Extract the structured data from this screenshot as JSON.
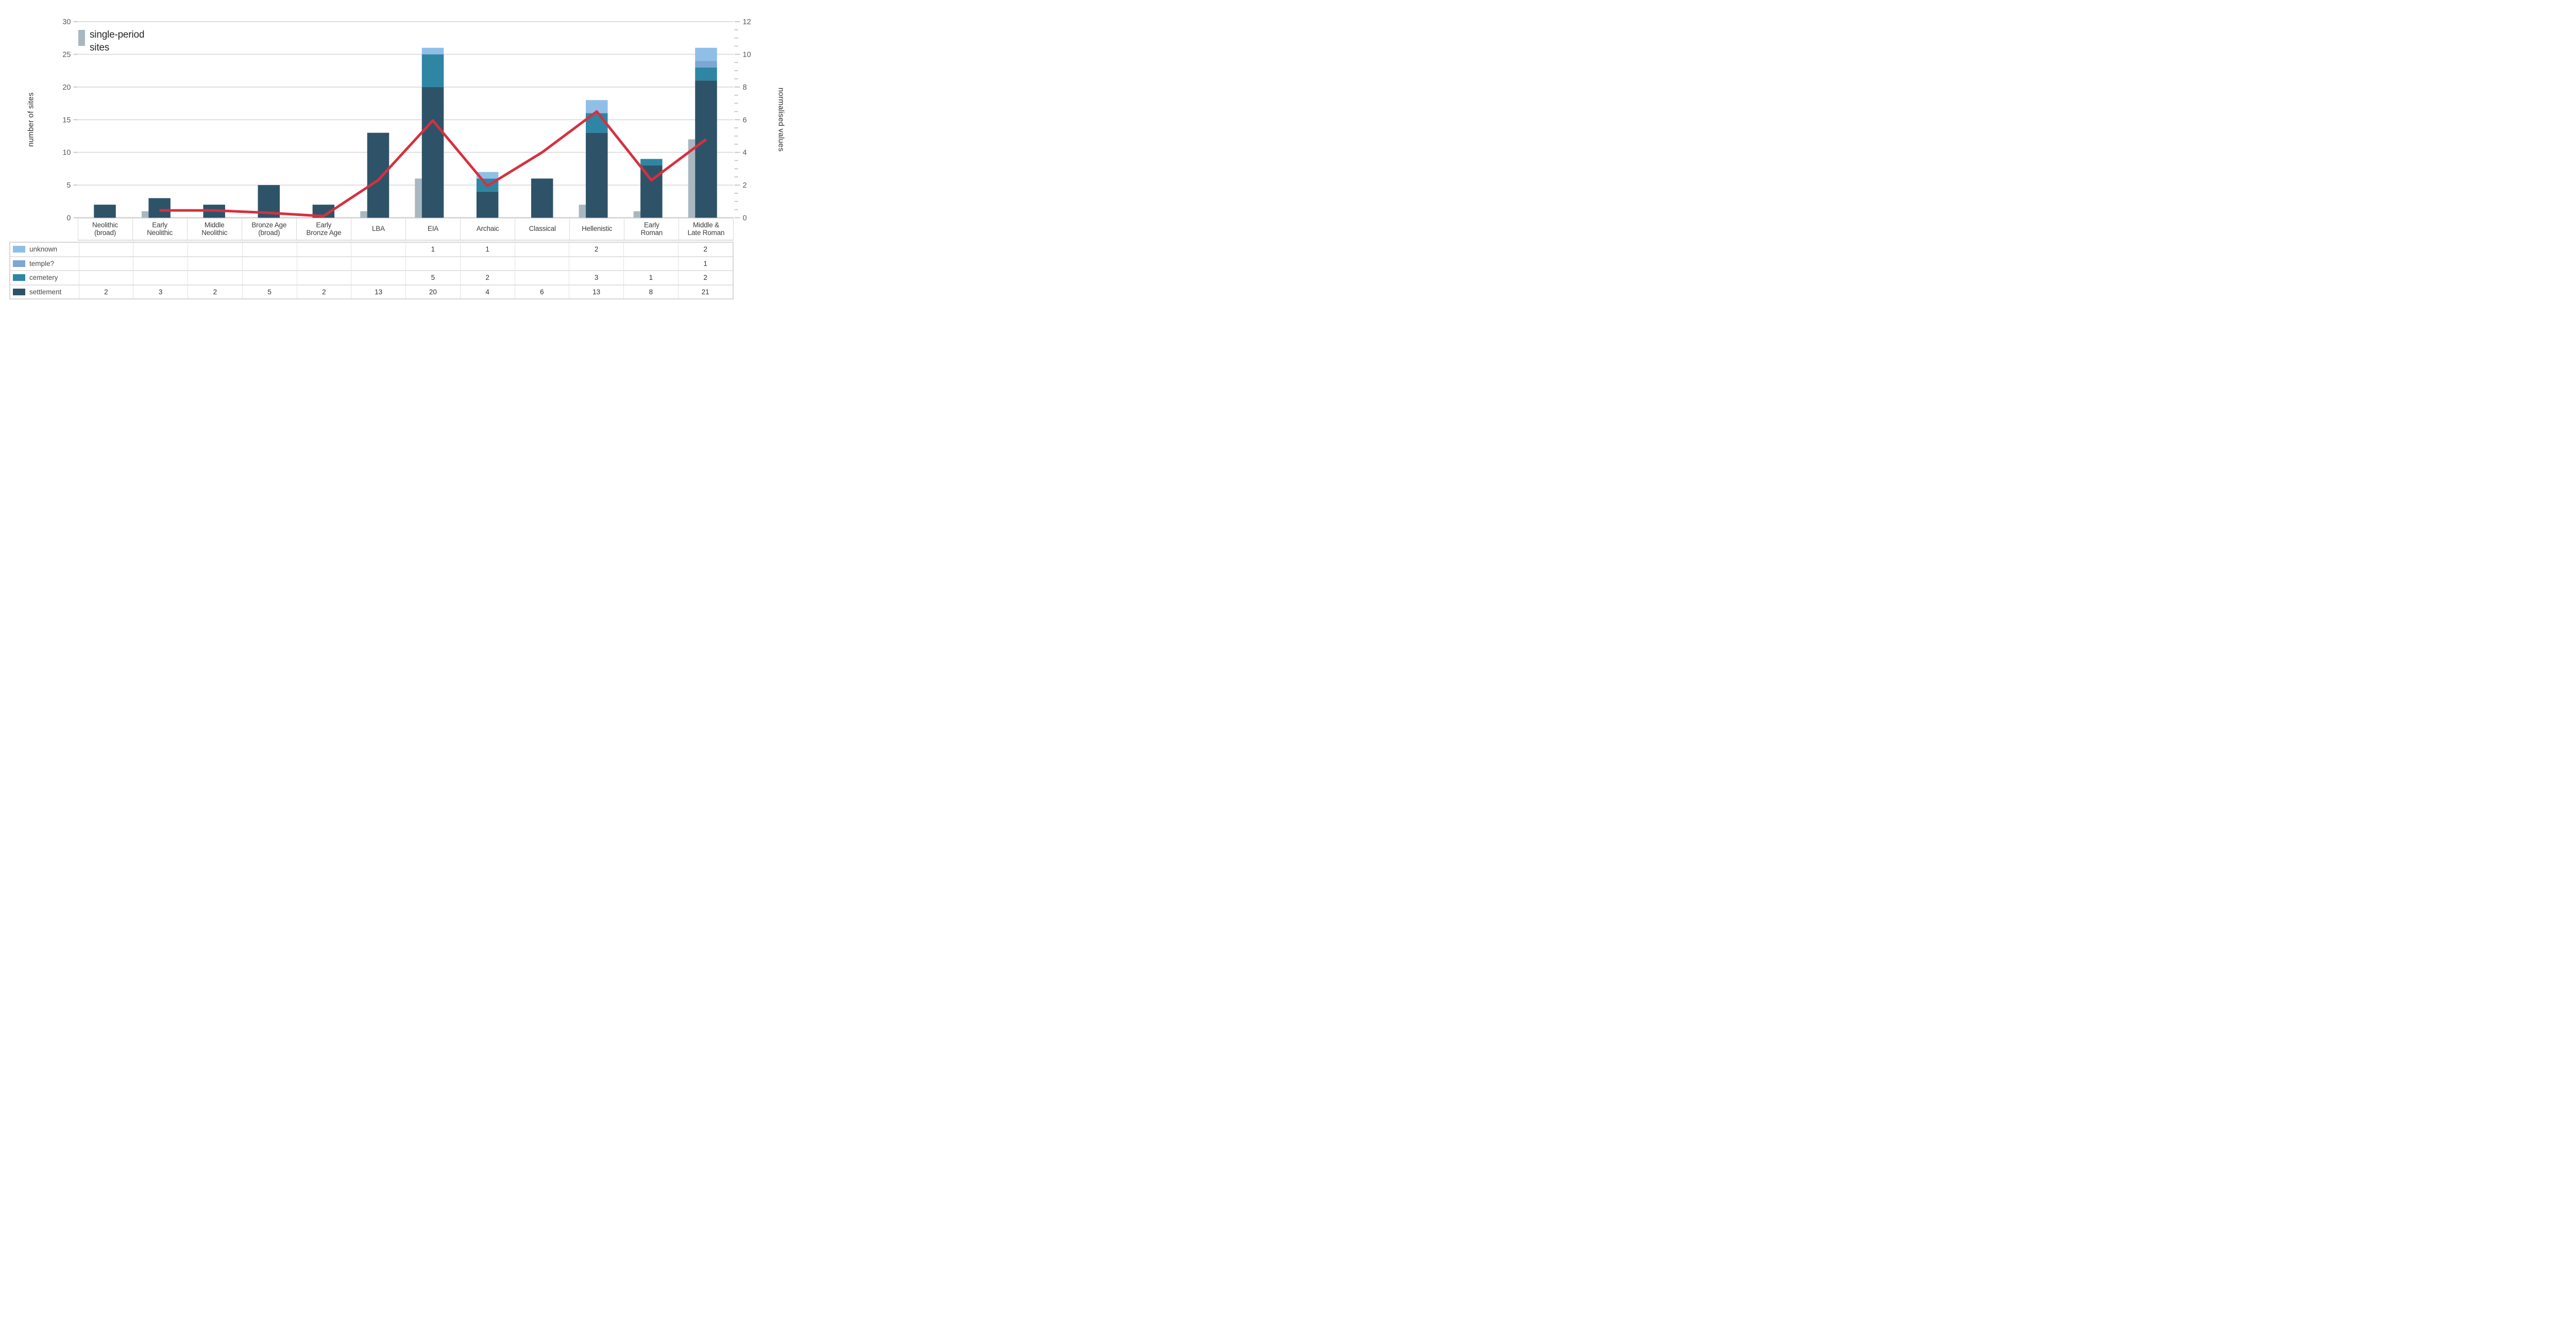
{
  "legend": {
    "label": "single-period sites"
  },
  "chart_data": {
    "type": "bar",
    "subtype": "stacked-bars-with-line-overlay",
    "categories": [
      "Neolithic\n(broad)",
      "Early\nNeolithic",
      "Middle\nNeolithic",
      "Bronze Age\n(broad)",
      "Early\nBronze Age",
      "LBA",
      "EIA",
      "Archaic",
      "Classical",
      "Hellenistic",
      "Early\nRoman",
      "Middle &\nLate Roman"
    ],
    "bar_series": [
      {
        "name": "settlement",
        "color": "#2E5369",
        "values": [
          2,
          3,
          2,
          5,
          2,
          13,
          20,
          4,
          6,
          13,
          8,
          21
        ]
      },
      {
        "name": "cemetery",
        "color": "#2E86A4",
        "values": [
          0,
          0,
          0,
          0,
          0,
          0,
          5,
          2,
          0,
          3,
          1,
          2
        ]
      },
      {
        "name": "temple?",
        "color": "#7CA6D3",
        "values": [
          0,
          0,
          0,
          0,
          0,
          0,
          0,
          0,
          0,
          0,
          0,
          1
        ]
      },
      {
        "name": "unknown",
        "color": "#8FBFE7",
        "values": [
          0,
          0,
          0,
          0,
          0,
          0,
          1,
          1,
          0,
          2,
          0,
          2
        ]
      }
    ],
    "single_period_series": {
      "name": "single-period sites",
      "color": "#A9B8C0",
      "values": [
        0,
        1,
        0,
        0,
        0,
        1,
        6,
        0,
        0,
        2,
        1,
        12
      ]
    },
    "line_series": {
      "name": "normalised values",
      "color": "#D6303F",
      "values": [
        null,
        0.45,
        0.45,
        0.3,
        0.1,
        2.3,
        5.95,
        1.95,
        4.0,
        6.5,
        2.3,
        4.8
      ]
    },
    "left_axis": {
      "title": "number of sites",
      "min": 0,
      "max": 30,
      "ticks": [
        0,
        5,
        10,
        15,
        20,
        25,
        30
      ]
    },
    "right_axis": {
      "title": "normalised values",
      "min": 0,
      "max": 12,
      "ticks": [
        0,
        2,
        4,
        6,
        8,
        10,
        12
      ],
      "minor_step": 0.5
    },
    "grid": true,
    "legend_position": "top-left"
  },
  "table": {
    "rows": [
      {
        "label": "unknown",
        "color": "#8FBFE7",
        "values": [
          "",
          "",
          "",
          "",
          "",
          "",
          "1",
          "1",
          "",
          "2",
          "",
          "2"
        ]
      },
      {
        "label": "temple?",
        "color": "#7CA6D3",
        "values": [
          "",
          "",
          "",
          "",
          "",
          "",
          "",
          "",
          "",
          "",
          "",
          "1"
        ]
      },
      {
        "label": "cemetery",
        "color": "#2E86A4",
        "values": [
          "",
          "",
          "",
          "",
          "",
          "",
          "5",
          "2",
          "",
          "3",
          "1",
          "2"
        ]
      },
      {
        "label": "settlement",
        "color": "#2E5369",
        "values": [
          "2",
          "3",
          "2",
          "5",
          "2",
          "13",
          "20",
          "4",
          "6",
          "13",
          "8",
          "21"
        ]
      }
    ]
  },
  "style": {
    "grid_color": "#dfdfdf",
    "axis_line_color": "#d2d2d2",
    "tick_color": "#c9c9c9",
    "tick_label_color": "#595959"
  }
}
